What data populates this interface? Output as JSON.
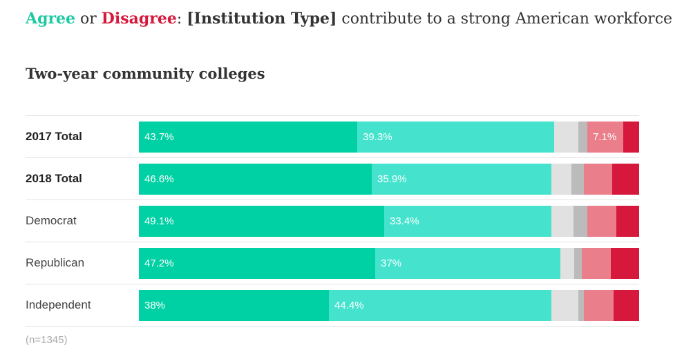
{
  "headline": {
    "agree": "Agree",
    "or": " or ",
    "disagree": "Disagree",
    "colon": ": ",
    "institution": "[Institution Type]",
    "rest": " contribute to a strong American workforce."
  },
  "footnote": "(n=1345)",
  "chart_data": {
    "type": "bar",
    "orientation": "horizontal",
    "stacked": true,
    "title": "Two-year community colleges",
    "categories": [
      "2017 Total",
      "2018 Total",
      "Democrat",
      "Republican",
      "Independent"
    ],
    "bold_categories": [
      "2017 Total",
      "2018 Total"
    ],
    "xlim": [
      0,
      100
    ],
    "grid": false,
    "series": [
      {
        "color": "#00d1a4",
        "values": [
          43.7,
          46.6,
          49.1,
          47.2,
          38.0
        ],
        "labels": [
          "43.7%",
          "46.6%",
          "49.1%",
          "47.2%",
          "38%"
        ]
      },
      {
        "color": "#45e3ce",
        "values": [
          39.3,
          35.9,
          33.4,
          37.0,
          44.4
        ],
        "labels": [
          "39.3%",
          "35.9%",
          "33.4%",
          "37%",
          "44.4%"
        ]
      },
      {
        "color": "#e1e1e1",
        "values": [
          4.8,
          4.0,
          4.4,
          2.8,
          5.5
        ],
        "labels": [
          "",
          "",
          "",
          "",
          ""
        ]
      },
      {
        "color": "#bbbbbb",
        "values": [
          1.9,
          2.5,
          2.8,
          1.5,
          1.0
        ],
        "labels": [
          "",
          "",
          "",
          "",
          ""
        ]
      },
      {
        "color": "#ea7f8b",
        "values": [
          7.1,
          5.6,
          5.7,
          5.9,
          6.0
        ],
        "labels": [
          "7.1%",
          "",
          "",
          "",
          ""
        ]
      },
      {
        "color": "#d5183b",
        "values": [
          3.2,
          5.4,
          4.6,
          5.6,
          5.1
        ],
        "labels": [
          "",
          "",
          "",
          "",
          ""
        ]
      }
    ]
  }
}
